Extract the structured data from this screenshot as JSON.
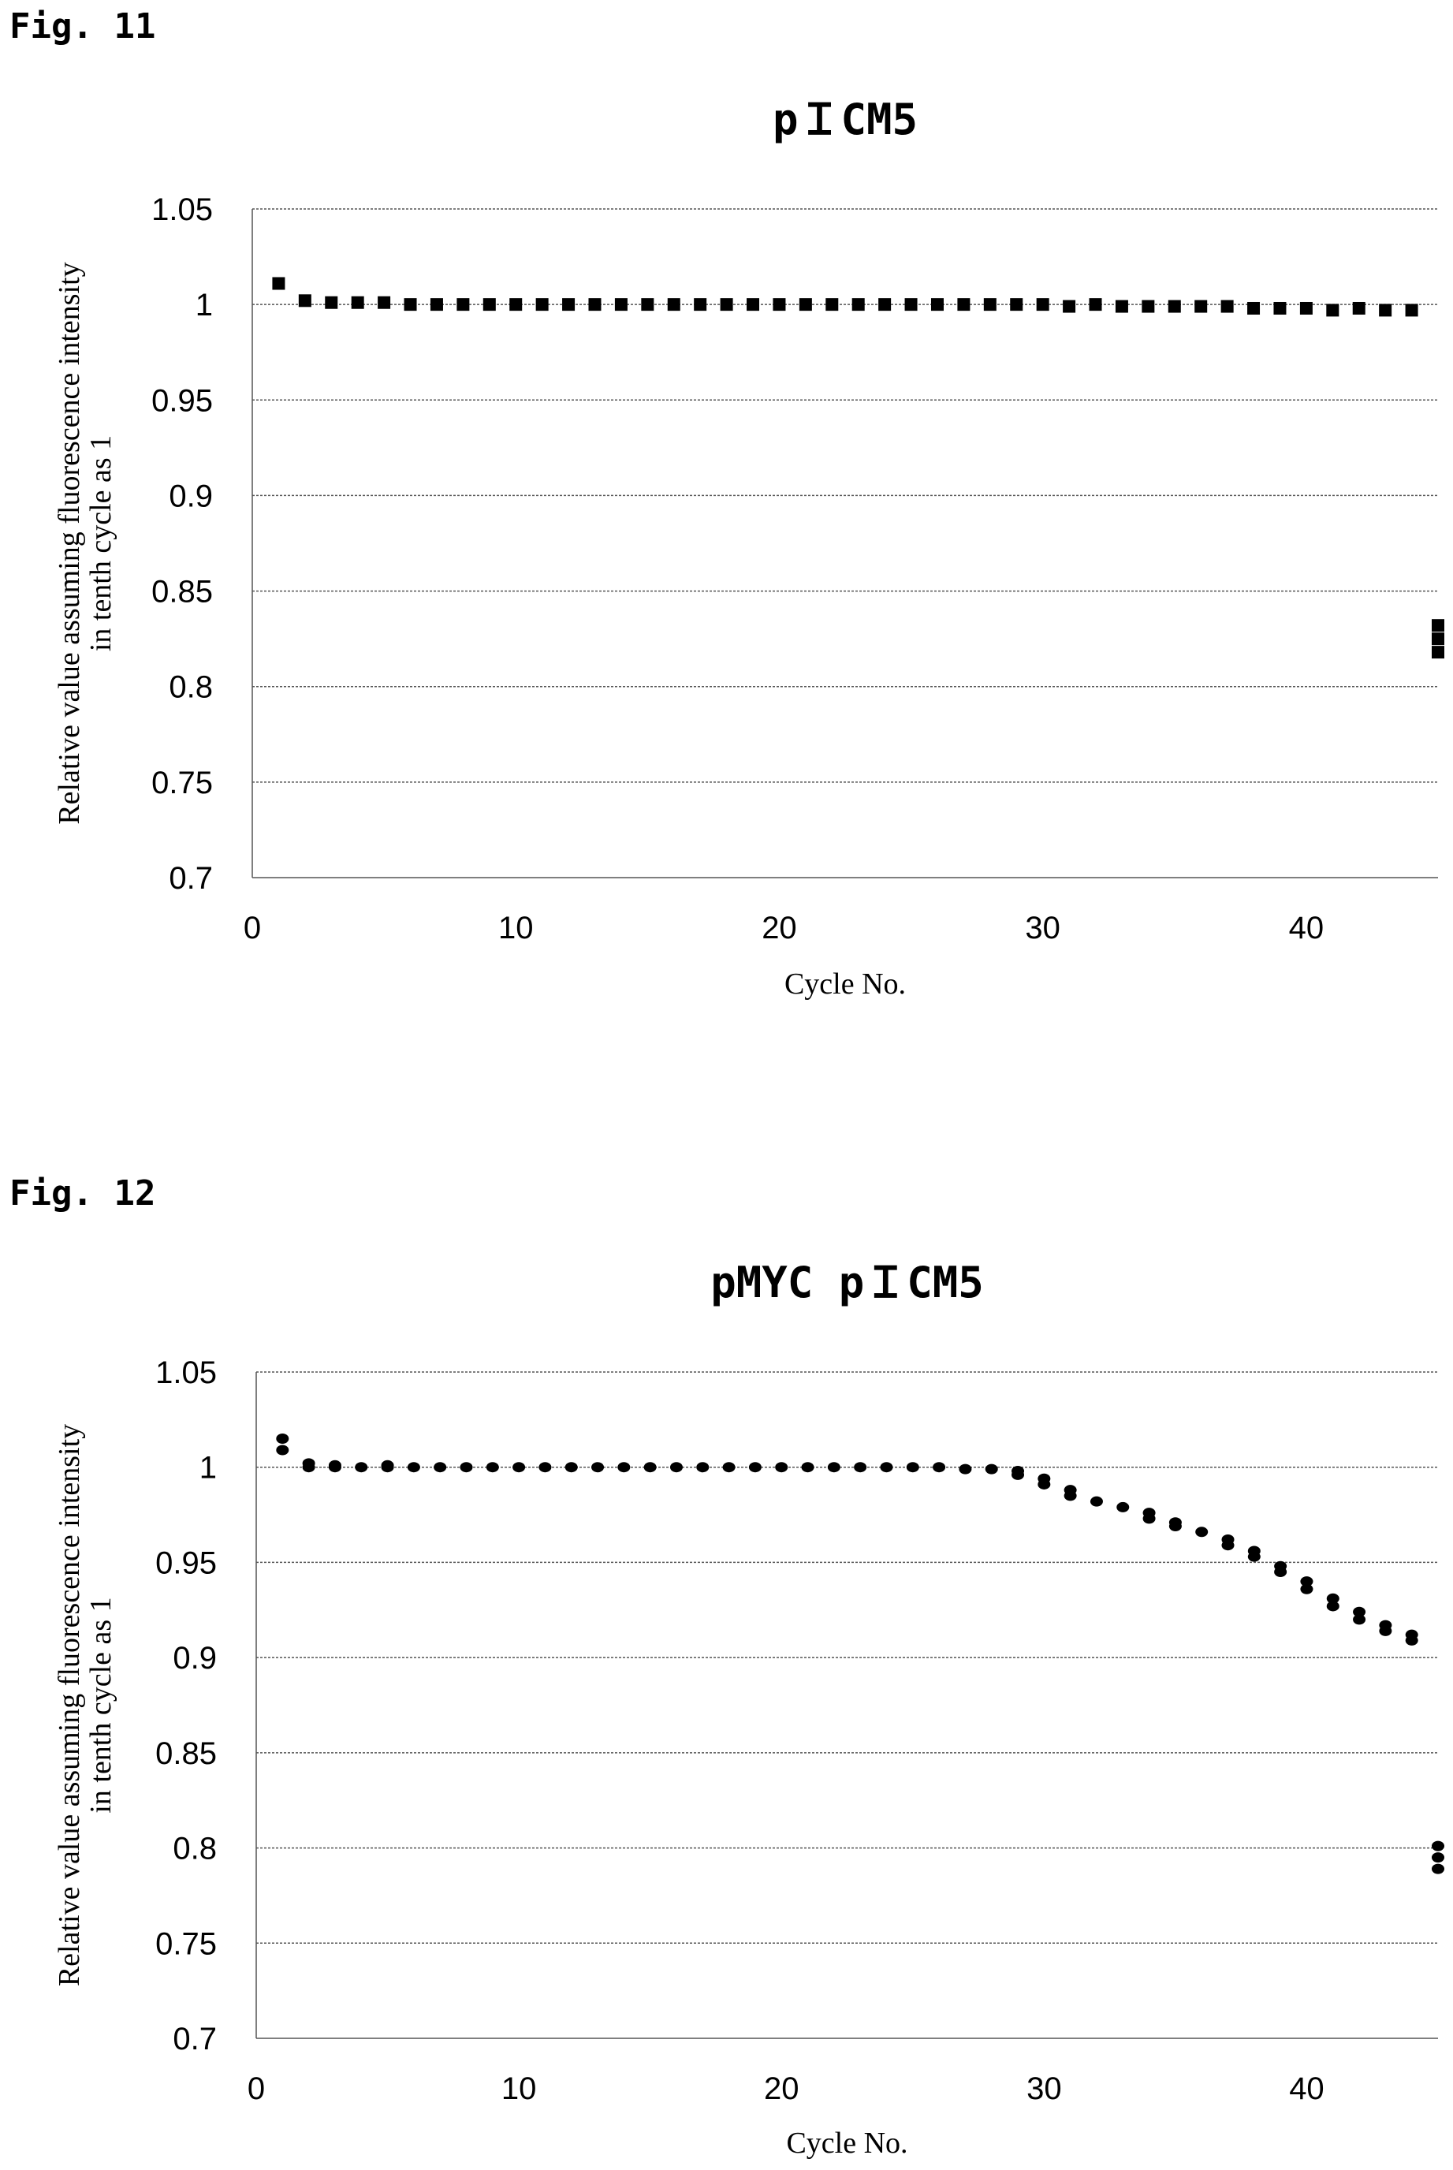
{
  "chart_data": [
    {
      "fig_label": "Fig. 11",
      "type": "scatter",
      "title": "pＩCM5",
      "xlabel": "Cycle No.",
      "ylabel": [
        "Relative value assuming fluorescence intensity",
        "in tenth cycle as 1"
      ],
      "xlim": [
        0,
        45
      ],
      "ylim": [
        0.7,
        1.05
      ],
      "xticks": [
        "0",
        "10",
        "20",
        "30",
        "40"
      ],
      "yticks": [
        "0.7",
        "0.75",
        "0.8",
        "0.85",
        "0.9",
        "0.95",
        "1",
        "1.05"
      ],
      "grid": true,
      "marker": "square",
      "points": [
        [
          1,
          1.011
        ],
        [
          2,
          1.002
        ],
        [
          3,
          1.001
        ],
        [
          4,
          1.001
        ],
        [
          5,
          1.001
        ],
        [
          6,
          1.0
        ],
        [
          7,
          1.0
        ],
        [
          8,
          1.0
        ],
        [
          9,
          1.0
        ],
        [
          10,
          1.0
        ],
        [
          11,
          1.0
        ],
        [
          12,
          1.0
        ],
        [
          13,
          1.0
        ],
        [
          14,
          1.0
        ],
        [
          15,
          1.0
        ],
        [
          16,
          1.0
        ],
        [
          17,
          1.0
        ],
        [
          18,
          1.0
        ],
        [
          19,
          1.0
        ],
        [
          20,
          1.0
        ],
        [
          21,
          1.0
        ],
        [
          22,
          1.0
        ],
        [
          23,
          1.0
        ],
        [
          24,
          1.0
        ],
        [
          25,
          1.0
        ],
        [
          26,
          1.0
        ],
        [
          27,
          1.0
        ],
        [
          28,
          1.0
        ],
        [
          29,
          1.0
        ],
        [
          30,
          1.0
        ],
        [
          31,
          0.999
        ],
        [
          32,
          1.0
        ],
        [
          33,
          0.999
        ],
        [
          34,
          0.999
        ],
        [
          35,
          0.999
        ],
        [
          36,
          0.999
        ],
        [
          37,
          0.999
        ],
        [
          38,
          0.998
        ],
        [
          39,
          0.998
        ],
        [
          40,
          0.998
        ],
        [
          41,
          0.997
        ],
        [
          42,
          0.998
        ],
        [
          43,
          0.997
        ],
        [
          44,
          0.997
        ],
        [
          45,
          0.832
        ],
        [
          45,
          0.825
        ],
        [
          45,
          0.818
        ]
      ]
    },
    {
      "fig_label": "Fig. 12",
      "type": "scatter",
      "title": "pMYC pＩCM5",
      "xlabel": "Cycle No.",
      "ylabel": [
        "Relative value assuming fluorescence intensity",
        "in tenth cycle as 1"
      ],
      "xlim": [
        0,
        45
      ],
      "ylim": [
        0.7,
        1.05
      ],
      "xticks": [
        "0",
        "10",
        "20",
        "30",
        "40"
      ],
      "yticks": [
        "0.7",
        "0.75",
        "0.8",
        "0.85",
        "0.9",
        "0.95",
        "1",
        "1.05"
      ],
      "grid": true,
      "marker": "circle",
      "points": [
        [
          1,
          1.015
        ],
        [
          1,
          1.009
        ],
        [
          2,
          1.002
        ],
        [
          2,
          1.0
        ],
        [
          3,
          1.001
        ],
        [
          3,
          1.0
        ],
        [
          4,
          1.0
        ],
        [
          5,
          1.001
        ],
        [
          5,
          1.0
        ],
        [
          6,
          1.0
        ],
        [
          7,
          1.0
        ],
        [
          8,
          1.0
        ],
        [
          9,
          1.0
        ],
        [
          10,
          1.0
        ],
        [
          11,
          1.0
        ],
        [
          12,
          1.0
        ],
        [
          13,
          1.0
        ],
        [
          14,
          1.0
        ],
        [
          15,
          1.0
        ],
        [
          16,
          1.0
        ],
        [
          17,
          1.0
        ],
        [
          18,
          1.0
        ],
        [
          19,
          1.0
        ],
        [
          20,
          1.0
        ],
        [
          21,
          1.0
        ],
        [
          22,
          1.0
        ],
        [
          23,
          1.0
        ],
        [
          24,
          1.0
        ],
        [
          25,
          1.0
        ],
        [
          26,
          1.0
        ],
        [
          27,
          0.999
        ],
        [
          28,
          0.999
        ],
        [
          29,
          0.998
        ],
        [
          29,
          0.996
        ],
        [
          30,
          0.994
        ],
        [
          30,
          0.991
        ],
        [
          31,
          0.988
        ],
        [
          31,
          0.985
        ],
        [
          32,
          0.982
        ],
        [
          33,
          0.979
        ],
        [
          34,
          0.976
        ],
        [
          34,
          0.973
        ],
        [
          35,
          0.971
        ],
        [
          35,
          0.969
        ],
        [
          36,
          0.966
        ],
        [
          37,
          0.962
        ],
        [
          37,
          0.959
        ],
        [
          38,
          0.956
        ],
        [
          38,
          0.953
        ],
        [
          39,
          0.948
        ],
        [
          39,
          0.945
        ],
        [
          40,
          0.94
        ],
        [
          40,
          0.936
        ],
        [
          41,
          0.931
        ],
        [
          41,
          0.927
        ],
        [
          42,
          0.924
        ],
        [
          42,
          0.92
        ],
        [
          43,
          0.917
        ],
        [
          43,
          0.914
        ],
        [
          44,
          0.912
        ],
        [
          44,
          0.909
        ],
        [
          45,
          0.801
        ],
        [
          45,
          0.795
        ],
        [
          45,
          0.789
        ]
      ]
    }
  ]
}
